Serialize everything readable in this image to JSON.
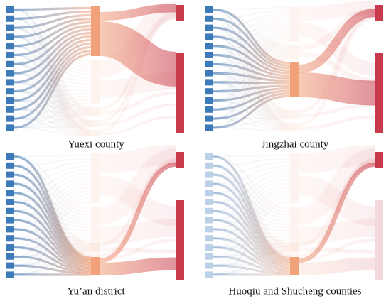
{
  "panels": [
    {
      "caption": "Yuexi county"
    },
    {
      "caption": "Jingzhai county"
    },
    {
      "caption": "Yu’an district"
    },
    {
      "caption": "Huoqiu and Shucheng counties"
    }
  ]
}
